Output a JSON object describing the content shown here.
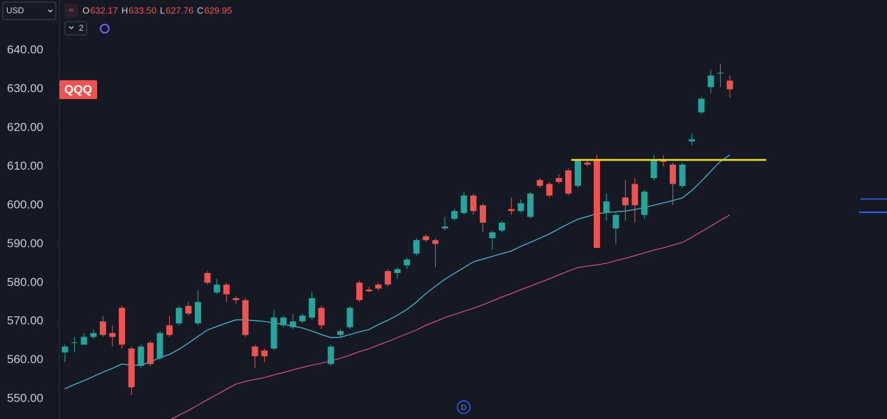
{
  "currency": "USD",
  "indicator_count": "2",
  "event_marker": "D",
  "legend": [
    {
      "label": "O",
      "value": "632.17"
    },
    {
      "label": "H",
      "value": "633.50"
    },
    {
      "label": "L",
      "value": "627.76"
    },
    {
      "label": "C",
      "value": "629.95"
    }
  ],
  "chart_data": {
    "type": "candlestick",
    "symbol": "QQQ",
    "up_color": "#26a69a",
    "down_color": "#ef5350",
    "open": [
      562,
      564.5,
      564,
      566,
      570,
      567,
      573.5,
      563,
      558.5,
      564.5,
      560.5,
      569,
      569.5,
      574,
      569.5,
      582.5,
      577.5,
      579.5,
      576,
      575.5,
      563.5,
      562.5,
      563,
      569,
      568.5,
      570,
      571,
      573.5,
      559,
      566.5,
      568.5,
      580,
      578.2,
      579.5,
      583,
      582.5,
      584.5,
      587.5,
      592,
      591,
      594,
      596.5,
      598,
      602.5,
      600,
      591.5,
      593.5,
      599,
      598.5,
      597,
      606.5,
      605.5,
      607,
      609,
      605,
      611,
      611.5,
      598,
      594,
      602,
      605.5,
      597.5,
      607,
      611.5,
      610.5,
      605,
      616.5,
      624,
      630.5,
      634,
      632.17
    ],
    "high": [
      564,
      566,
      567,
      568,
      571.5,
      569,
      574,
      563.5,
      564,
      565,
      567.5,
      571.5,
      574,
      575,
      578,
      583,
      581,
      580,
      576.5,
      576,
      564,
      563,
      573,
      571.5,
      572,
      572,
      577.5,
      574,
      564,
      568,
      574,
      580.5,
      579,
      580,
      583.5,
      584,
      586.5,
      591.5,
      592.5,
      591.5,
      597,
      599,
      603.5,
      603,
      600.5,
      593.5,
      596,
      602,
      601.5,
      603.5,
      607,
      606,
      608,
      609.5,
      612,
      612,
      613,
      603,
      598,
      606.5,
      607,
      604,
      613,
      613,
      611,
      611,
      618.5,
      628,
      635,
      636.5,
      633.5
    ],
    "low": [
      559.5,
      562,
      564,
      565.5,
      566,
      563.5,
      563,
      551,
      558,
      558.5,
      560,
      566,
      569,
      571.5,
      569,
      579.5,
      577,
      575,
      574.5,
      566,
      558,
      559.5,
      562.5,
      568.5,
      568,
      569.5,
      570.5,
      568,
      558.5,
      566,
      568,
      575,
      577.5,
      578,
      579,
      581,
      583.5,
      587,
      590.5,
      584,
      593.5,
      596,
      597.5,
      597.5,
      593,
      588.5,
      593,
      597.5,
      598,
      596.5,
      604.5,
      602,
      605.5,
      602.5,
      604.5,
      610,
      589,
      596,
      590,
      596,
      595.5,
      596.5,
      606.5,
      610,
      600,
      604.5,
      615.5,
      623.5,
      629,
      630.5,
      627.76
    ],
    "close": [
      563.5,
      564.6,
      566,
      567,
      566.5,
      566,
      564,
      553,
      563.5,
      559,
      567,
      566.5,
      573.5,
      572,
      575,
      580,
      579.5,
      577,
      575.5,
      566.5,
      561,
      561,
      571,
      571,
      570,
      571.5,
      576,
      569,
      563.5,
      567.5,
      573.5,
      575.5,
      577.8,
      578.5,
      579.5,
      583.5,
      586,
      591,
      591,
      590,
      594.5,
      598.5,
      602.5,
      598.5,
      595.5,
      593,
      595.5,
      598.5,
      600.5,
      603,
      605,
      602.5,
      606,
      603,
      611.5,
      610.5,
      589,
      601,
      597.5,
      600,
      600,
      603.5,
      611.5,
      611.2,
      605.5,
      610.5,
      617,
      627.5,
      633.5,
      634.2,
      629.95
    ],
    "series": [
      {
        "color": "#4fc3d9",
        "values": [
          552.6,
          553.7,
          554.7,
          555.8,
          556.9,
          557.9,
          559,
          558.7,
          558.7,
          559.6,
          560.6,
          561.5,
          562.8,
          564.4,
          566.1,
          567.8,
          568.7,
          569.6,
          570.4,
          570.4,
          570.2,
          570,
          569.6,
          569.2,
          568.8,
          568.3,
          567.5,
          566.6,
          565.8,
          565.9,
          566.6,
          567.3,
          567.9,
          569.2,
          570.3,
          571.6,
          573.1,
          575,
          577.2,
          579.1,
          580.9,
          582.4,
          583.9,
          585.4,
          586.1,
          586.8,
          587.5,
          588.2,
          589.4,
          590.4,
          591.5,
          592.6,
          593.9,
          595.2,
          596.4,
          597.1,
          597.8,
          598.1,
          598.3,
          598.5,
          598.9,
          599.4,
          600,
          600.6,
          601.2,
          601.9,
          603.8,
          606.2,
          608.8,
          611.3,
          613
        ]
      },
      {
        "color": "#e0508a",
        "values": [
          null,
          null,
          null,
          null,
          null,
          null,
          null,
          null,
          null,
          null,
          null,
          544.5,
          545.8,
          547,
          548.4,
          549.8,
          551.1,
          552.5,
          553.8,
          554.5,
          555,
          555.5,
          556.2,
          556.8,
          557.5,
          558.1,
          558.7,
          559.2,
          559.8,
          560.5,
          561.3,
          562.2,
          562.9,
          563.9,
          564.8,
          565.8,
          566.8,
          567.8,
          569,
          570,
          571,
          571.8,
          572.6,
          573.4,
          574.3,
          575.3,
          576.3,
          577.2,
          578.2,
          579.1,
          580.1,
          581,
          582,
          583,
          583.9,
          584.3,
          584.6,
          585,
          585.7,
          586.3,
          587,
          587.7,
          588.4,
          589,
          589.7,
          590.4,
          591.7,
          593.2,
          594.6,
          596.1,
          597.5
        ]
      }
    ],
    "level": {
      "value": 611.7,
      "color": "#f5e11f"
    },
    "ylim": [
      544.8,
      653
    ],
    "yticks": [
      {
        "value": 550,
        "label": "550.00"
      },
      {
        "value": 560,
        "label": "560.00"
      },
      {
        "value": 570,
        "label": "570.00"
      },
      {
        "value": 580,
        "label": "580.00"
      },
      {
        "value": 590,
        "label": "590.00"
      },
      {
        "value": 600,
        "label": "600.00"
      },
      {
        "value": 610,
        "label": "610.00"
      },
      {
        "value": 620,
        "label": "620.00"
      },
      {
        "value": 630,
        "label": "630.00"
      },
      {
        "value": 640,
        "label": "640.00"
      }
    ]
  }
}
